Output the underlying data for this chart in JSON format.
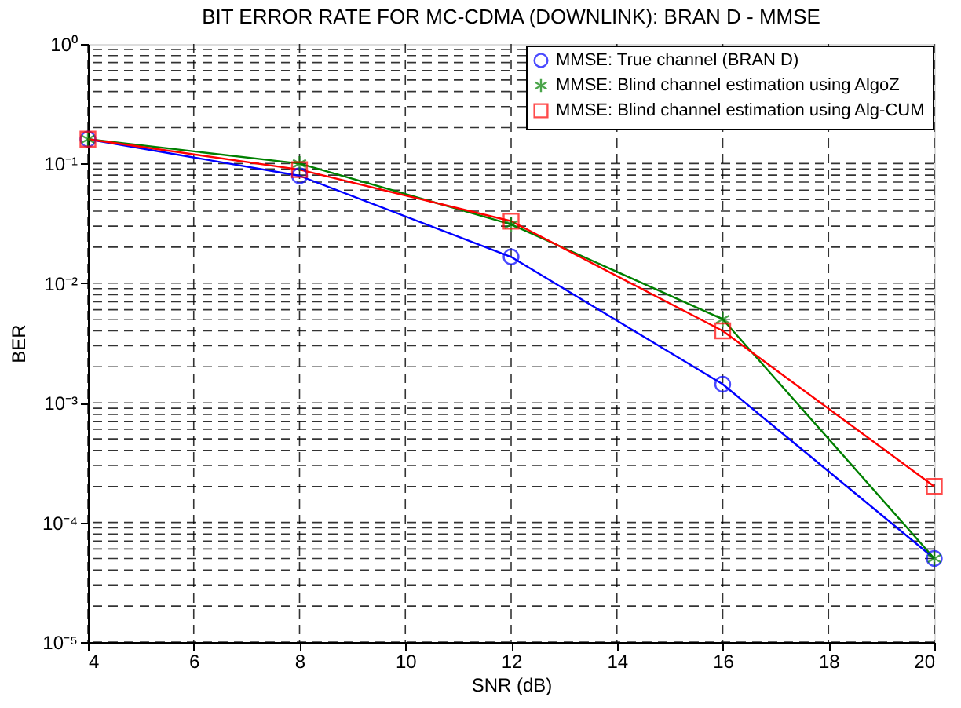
{
  "chart_data": {
    "type": "line",
    "title": "BIT ERROR RATE FOR MC-CDMA (DOWNLINK): BRAN D - MMSE",
    "xlabel": "SNR (dB)",
    "ylabel": "BER",
    "x": [
      4,
      8,
      12,
      16,
      20
    ],
    "series": [
      {
        "name": "MMSE: True channel (BRAN D)",
        "color": "#0000ff",
        "marker": "circle",
        "values": [
          0.16,
          0.079,
          0.0166,
          0.00143,
          5e-05
        ]
      },
      {
        "name": "MMSE: Blind channel estimation using AlgoZ",
        "color": "#008000",
        "marker": "cross",
        "values": [
          0.16,
          0.1,
          0.031,
          0.005,
          5e-05
        ]
      },
      {
        "name": "MMSE: Blind channel estimation using Alg-CUM",
        "color": "#ff0000",
        "marker": "square",
        "values": [
          0.16,
          0.089,
          0.033,
          0.004,
          0.0002
        ]
      }
    ],
    "log": "y",
    "grid": true,
    "legend": "top right",
    "xlim": [
      4,
      20
    ],
    "xticks": [
      4,
      6,
      8,
      10,
      12,
      14,
      16,
      18,
      20
    ],
    "ylim": [
      1e-05,
      1
    ],
    "yticks": [
      {
        "value": 1e-05,
        "label": "10⁻⁵"
      },
      {
        "value": 0.0001,
        "label": "10⁻⁴"
      },
      {
        "value": 0.001,
        "label": "10⁻³"
      },
      {
        "value": 0.01,
        "label": "10⁻²"
      },
      {
        "value": 0.1,
        "label": "10⁻¹"
      },
      {
        "value": 1,
        "label": "10⁰"
      }
    ]
  }
}
